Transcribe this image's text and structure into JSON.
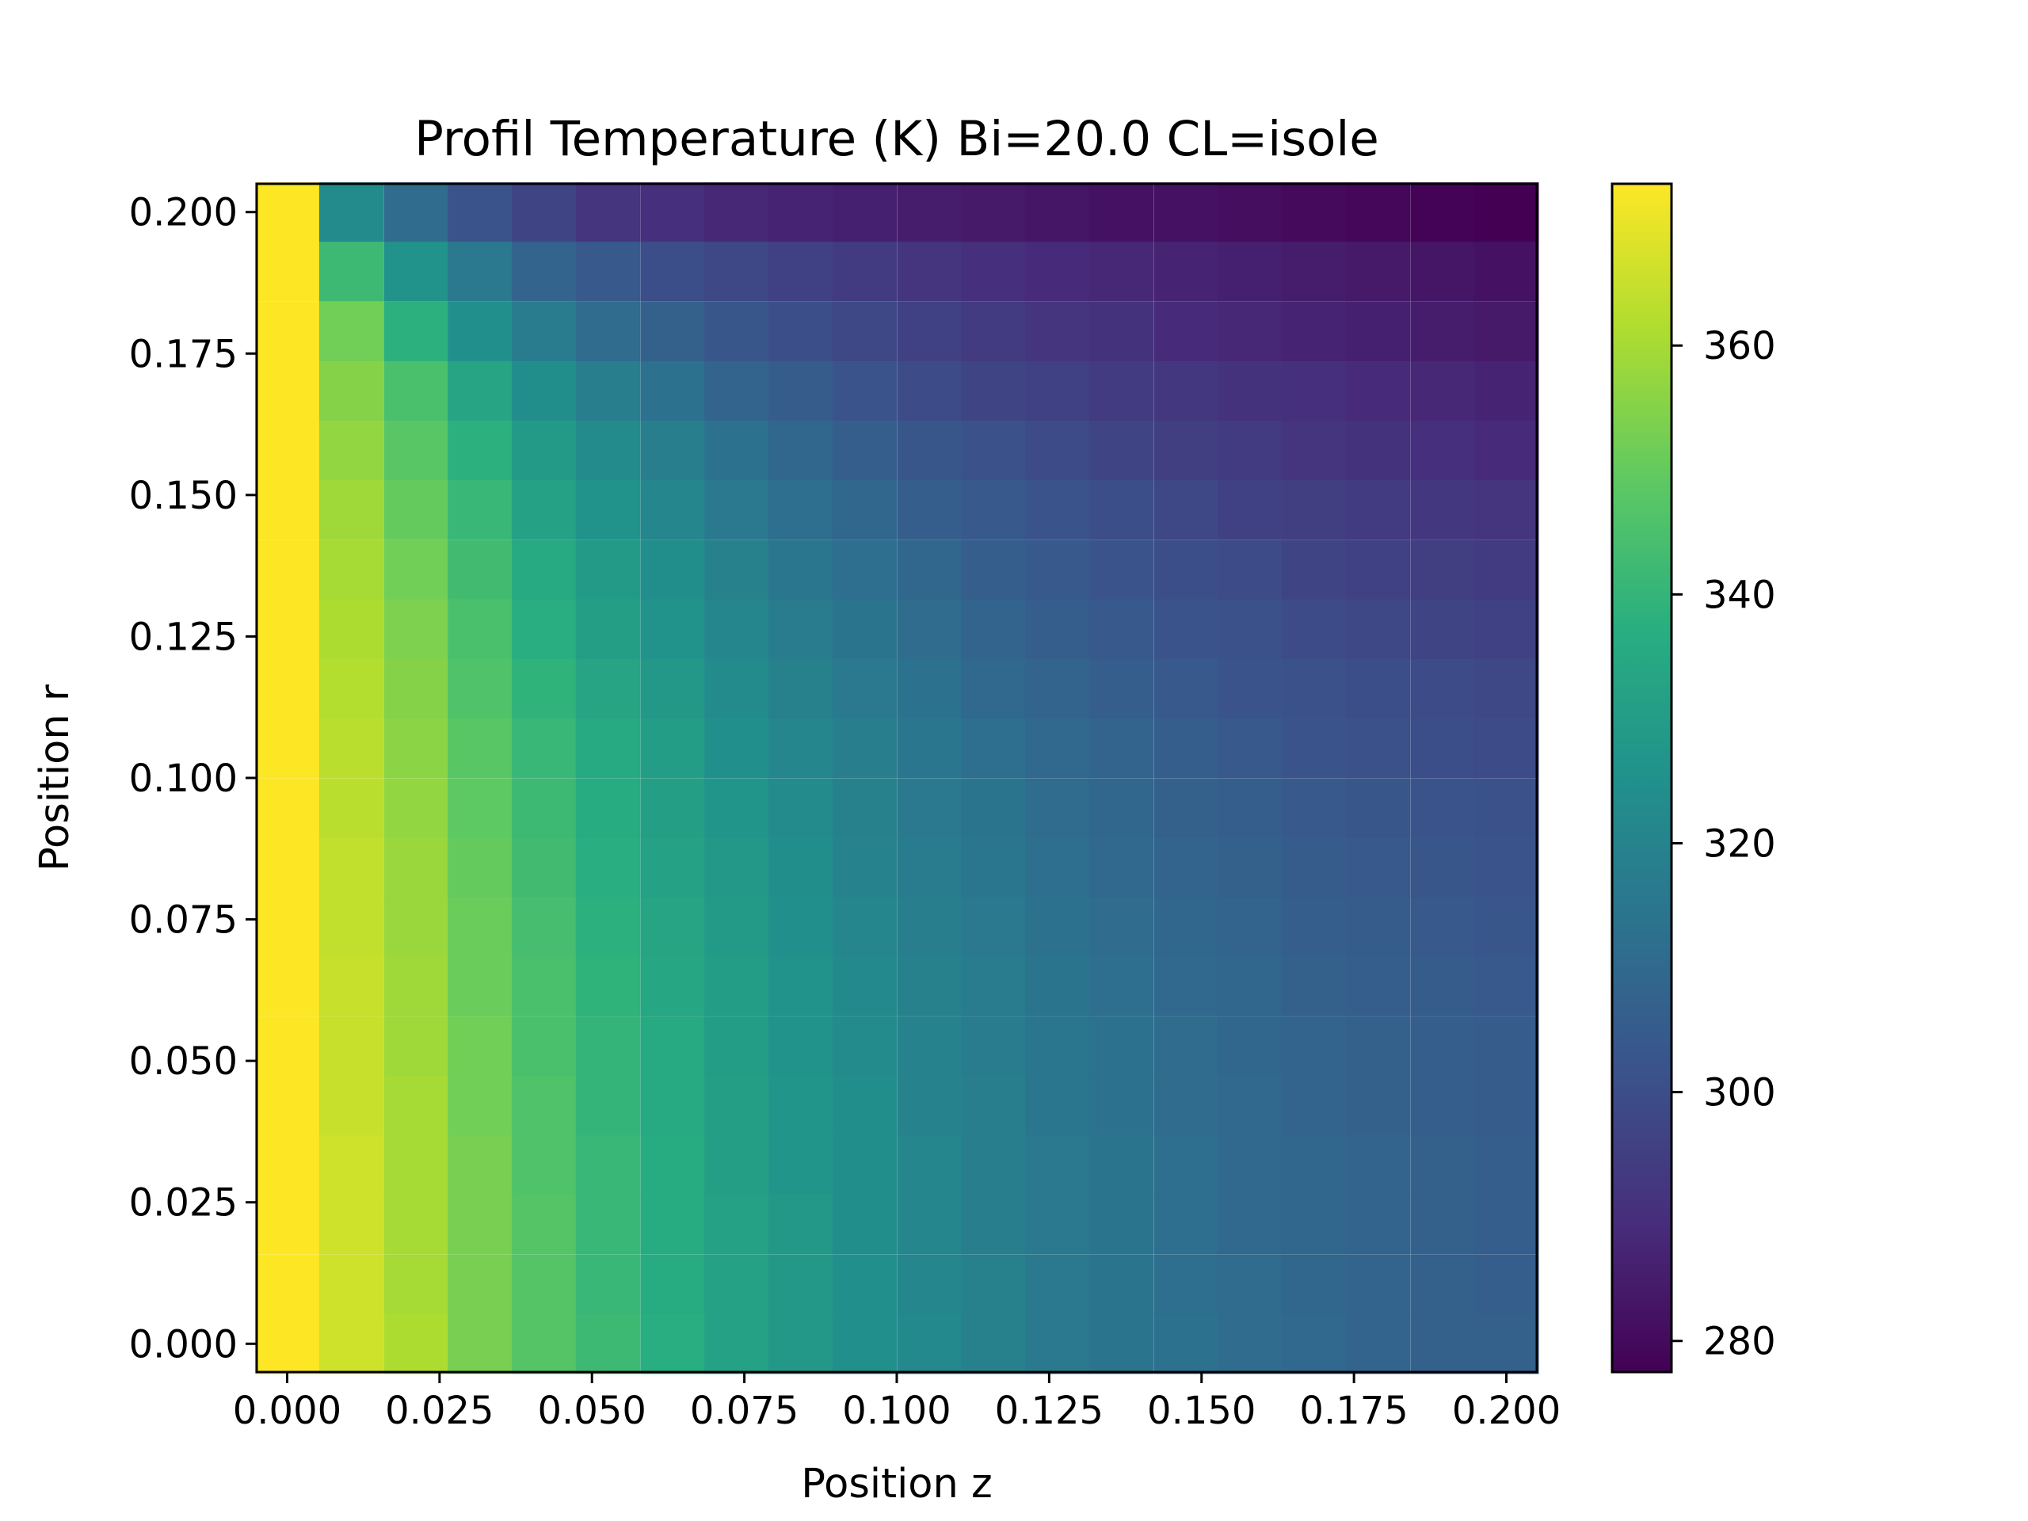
{
  "chart_data": {
    "type": "heatmap",
    "title": "Profil Temperature (K) Bi=20.0 CL=isole",
    "xlabel": "Position z",
    "ylabel": "Position r",
    "x_ticks": [
      "0.000",
      "0.025",
      "0.050",
      "0.075",
      "0.100",
      "0.125",
      "0.150",
      "0.175",
      "0.200"
    ],
    "y_ticks": [
      "0.000",
      "0.025",
      "0.050",
      "0.075",
      "0.100",
      "0.125",
      "0.150",
      "0.175",
      "0.200"
    ],
    "colorbar_ticks": [
      "280",
      "300",
      "320",
      "340",
      "360"
    ],
    "xlim": [
      -0.005,
      0.205
    ],
    "ylim": [
      -0.005,
      0.205
    ],
    "colorbar_range": [
      277.5,
      373
    ],
    "colormap": "viridis",
    "grid": false,
    "z_centers": [
      0.0,
      0.0105,
      0.0211,
      0.0316,
      0.0421,
      0.0526,
      0.0632,
      0.0737,
      0.0842,
      0.0947,
      0.1053,
      0.1158,
      0.1263,
      0.1368,
      0.1474,
      0.1579,
      0.1684,
      0.1789,
      0.1895,
      0.2
    ],
    "r_centers": [
      0.0,
      0.0105,
      0.0211,
      0.0316,
      0.0421,
      0.0526,
      0.0632,
      0.0737,
      0.0842,
      0.0947,
      0.1053,
      0.1158,
      0.1263,
      0.1368,
      0.1474,
      0.1579,
      0.1684,
      0.1789,
      0.1895,
      0.2
    ],
    "temperature_rows_top_to_bottom": [
      [
        373,
        323,
        311,
        302,
        297,
        292,
        290,
        288,
        287,
        286,
        285,
        284,
        283,
        282,
        282,
        281,
        280,
        279,
        278,
        277.5
      ],
      [
        373,
        342,
        326,
        316,
        308,
        304,
        300,
        298,
        296,
        294,
        292,
        290,
        289,
        288,
        287,
        286,
        285,
        284,
        283,
        282
      ],
      [
        373,
        352,
        338,
        325,
        317,
        311,
        307,
        303,
        300,
        298,
        296,
        294,
        292,
        291,
        289,
        288,
        287,
        286,
        285,
        284
      ],
      [
        373,
        355,
        345,
        333,
        324,
        318,
        313,
        308,
        305,
        302,
        299,
        297,
        296,
        294,
        293,
        291,
        290,
        289,
        288,
        287
      ],
      [
        373,
        357,
        348,
        338,
        329,
        323,
        318,
        313,
        309,
        306,
        303,
        301,
        299,
        297,
        295,
        294,
        292,
        291,
        290,
        289
      ],
      [
        373,
        359,
        350,
        341,
        332,
        326,
        321,
        316,
        312,
        309,
        306,
        304,
        302,
        300,
        298,
        296,
        295,
        294,
        293,
        292
      ],
      [
        373,
        360,
        352,
        343,
        335,
        329,
        324,
        319,
        315,
        312,
        309,
        306,
        304,
        302,
        300,
        299,
        297,
        296,
        295,
        294
      ],
      [
        373,
        361,
        354,
        345,
        337,
        331,
        326,
        321,
        317,
        314,
        311,
        308,
        306,
        304,
        302,
        301,
        299,
        298,
        297,
        296
      ],
      [
        373,
        362,
        355,
        346,
        339,
        333,
        328,
        323,
        319,
        316,
        313,
        310,
        308,
        306,
        304,
        302,
        301,
        300,
        299,
        298
      ],
      [
        373,
        363,
        356,
        348,
        341,
        335,
        330,
        325,
        321,
        318,
        315,
        312,
        310,
        308,
        306,
        304,
        302,
        301,
        300,
        299
      ],
      [
        373,
        363,
        357,
        349,
        342,
        336,
        331,
        327,
        323,
        319,
        316,
        314,
        311,
        309,
        307,
        306,
        304,
        303,
        302,
        301
      ],
      [
        373,
        364,
        358,
        350,
        343,
        337,
        332,
        328,
        324,
        320,
        317,
        315,
        312,
        310,
        308,
        307,
        305,
        304,
        303,
        302
      ],
      [
        373,
        364,
        358,
        351,
        344,
        338,
        333,
        329,
        325,
        321,
        318,
        316,
        313,
        311,
        309,
        308,
        306,
        305,
        304,
        303
      ],
      [
        373,
        365,
        359,
        351,
        345,
        339,
        334,
        330,
        326,
        322,
        319,
        317,
        314,
        312,
        310,
        309,
        307,
        306,
        305,
        304
      ],
      [
        373,
        365,
        359,
        352,
        345,
        340,
        335,
        330,
        326,
        323,
        320,
        317,
        315,
        313,
        311,
        309,
        308,
        307,
        306,
        305
      ],
      [
        373,
        365,
        360,
        352,
        346,
        340,
        335,
        331,
        327,
        324,
        320,
        318,
        315,
        313,
        311,
        310,
        308,
        307,
        306,
        305
      ],
      [
        373,
        366,
        360,
        353,
        346,
        341,
        336,
        331,
        327,
        324,
        321,
        318,
        316,
        314,
        312,
        310,
        309,
        308,
        307,
        306
      ],
      [
        373,
        366,
        360,
        353,
        347,
        341,
        336,
        332,
        328,
        324,
        321,
        318,
        316,
        314,
        312,
        310,
        309,
        308,
        307,
        306
      ],
      [
        373,
        366,
        360,
        353,
        347,
        341,
        336,
        332,
        328,
        325,
        321,
        319,
        316,
        314,
        312,
        311,
        309,
        308,
        307,
        306
      ],
      [
        373,
        366,
        361,
        353,
        347,
        342,
        337,
        332,
        328,
        325,
        322,
        319,
        316,
        314,
        313,
        311,
        310,
        308,
        307,
        307
      ]
    ]
  }
}
